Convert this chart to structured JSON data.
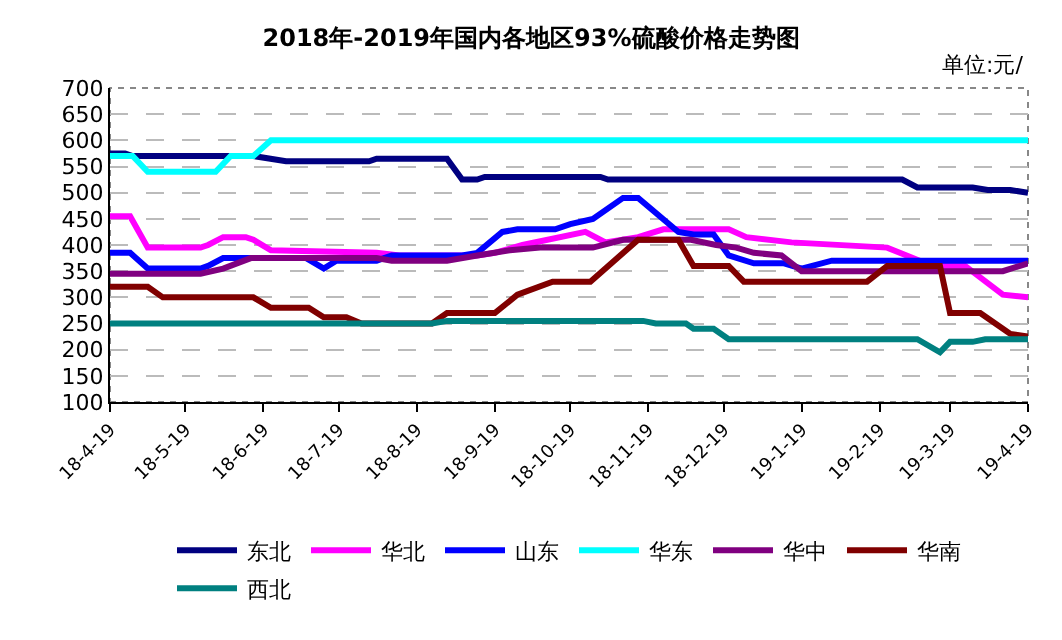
{
  "chart_data": {
    "type": "line",
    "title": "2018年-2019年国内各地区93%硫酸价格走势图",
    "annotations": [
      "单位:元/"
    ],
    "xlim": [
      "2018-04-19",
      "2019-04-19"
    ],
    "xticks": [
      {
        "value": "2018-04-19",
        "label": "18-4-19"
      },
      {
        "value": "2018-05-19",
        "label": "18-5-19"
      },
      {
        "value": "2018-06-19",
        "label": "18-6-19"
      },
      {
        "value": "2018-07-19",
        "label": "18-7-19"
      },
      {
        "value": "2018-08-19",
        "label": "18-8-19"
      },
      {
        "value": "2018-09-19",
        "label": "18-9-19"
      },
      {
        "value": "2018-10-19",
        "label": "18-10-19"
      },
      {
        "value": "2018-11-19",
        "label": "18-11-19"
      },
      {
        "value": "2018-12-19",
        "label": "18-12-19"
      },
      {
        "value": "2019-01-19",
        "label": "19-1-19"
      },
      {
        "value": "2019-02-19",
        "label": "19-2-19"
      },
      {
        "value": "2019-03-19",
        "label": "19-3-19"
      },
      {
        "value": "2019-04-19",
        "label": "19-4-19"
      }
    ],
    "ylim": [
      100,
      700
    ],
    "yticks": [
      100,
      150,
      200,
      250,
      300,
      350,
      400,
      450,
      500,
      550,
      600,
      650,
      700
    ],
    "grid": "y",
    "legend": "bottom",
    "marker": "none",
    "line_style": "solid",
    "series": [
      {
        "name": "东北",
        "color": "#000080",
        "x": [
          "2018-04-19",
          "2018-04-25",
          "2018-04-28",
          "2018-06-15",
          "2018-06-28",
          "2018-07-31",
          "2018-08-03",
          "2018-08-31",
          "2018-09-06",
          "2018-09-12",
          "2018-09-15",
          "2018-10-31",
          "2018-11-03",
          "2019-02-28",
          "2019-03-06",
          "2019-03-28",
          "2019-04-03",
          "2019-04-12",
          "2019-04-19"
        ],
        "values": [
          575,
          575,
          570,
          570,
          560,
          560,
          565,
          565,
          525,
          525,
          530,
          530,
          525,
          525,
          510,
          510,
          505,
          505,
          500
        ]
      },
      {
        "name": "华北",
        "color": "#ff00ff",
        "x": [
          "2018-04-19",
          "2018-04-27",
          "2018-05-04",
          "2018-05-25",
          "2018-05-28",
          "2018-06-03",
          "2018-06-12",
          "2018-06-15",
          "2018-06-22",
          "2018-08-03",
          "2018-08-12",
          "2018-09-12",
          "2018-09-19",
          "2018-09-30",
          "2018-10-25",
          "2018-11-02",
          "2018-11-15",
          "2018-11-25",
          "2018-12-21",
          "2018-12-28",
          "2019-01-15",
          "2019-02-22",
          "2019-03-12",
          "2019-03-25",
          "2019-04-09",
          "2019-04-19"
        ],
        "values": [
          455,
          455,
          395,
          395,
          400,
          415,
          415,
          410,
          390,
          385,
          380,
          380,
          385,
          400,
          425,
          405,
          415,
          430,
          430,
          415,
          405,
          395,
          360,
          360,
          305,
          300
        ]
      },
      {
        "name": "山东",
        "color": "#0000ff",
        "x": [
          "2018-04-19",
          "2018-04-27",
          "2018-05-04",
          "2018-05-25",
          "2018-05-28",
          "2018-06-03",
          "2018-07-06",
          "2018-07-13",
          "2018-07-18",
          "2018-08-03",
          "2018-08-09",
          "2018-09-06",
          "2018-09-12",
          "2018-09-22",
          "2018-09-28",
          "2018-10-13",
          "2018-10-19",
          "2018-10-28",
          "2018-11-09",
          "2018-11-15",
          "2018-12-01",
          "2018-12-07",
          "2018-12-15",
          "2018-12-21",
          "2018-12-31",
          "2019-01-12",
          "2019-01-19",
          "2019-01-31",
          "2019-04-19"
        ],
        "values": [
          385,
          385,
          355,
          355,
          360,
          375,
          375,
          355,
          370,
          370,
          380,
          380,
          385,
          425,
          430,
          430,
          440,
          450,
          490,
          490,
          425,
          420,
          420,
          380,
          365,
          365,
          355,
          370,
          370
        ]
      },
      {
        "name": "华东",
        "color": "#00ffff",
        "x": [
          "2018-04-19",
          "2018-04-28",
          "2018-05-04",
          "2018-05-31",
          "2018-06-06",
          "2018-06-15",
          "2018-06-22",
          "2019-04-19"
        ],
        "values": [
          570,
          570,
          540,
          540,
          570,
          570,
          600,
          600
        ]
      },
      {
        "name": "华中",
        "color": "#800080",
        "x": [
          "2018-04-19",
          "2018-05-25",
          "2018-06-03",
          "2018-06-14",
          "2018-08-03",
          "2018-08-09",
          "2018-08-31",
          "2018-09-12",
          "2018-09-25",
          "2018-10-07",
          "2018-10-28",
          "2018-11-09",
          "2018-12-06",
          "2018-12-16",
          "2018-12-24",
          "2018-12-31",
          "2019-01-11",
          "2019-01-19",
          "2019-04-09",
          "2019-04-19"
        ],
        "values": [
          345,
          345,
          355,
          375,
          375,
          370,
          370,
          380,
          390,
          395,
          395,
          410,
          410,
          400,
          395,
          385,
          380,
          350,
          350,
          365
        ]
      },
      {
        "name": "华南",
        "color": "#800000",
        "x": [
          "2018-04-19",
          "2018-05-04",
          "2018-05-10",
          "2018-06-15",
          "2018-06-22",
          "2018-07-07",
          "2018-07-13",
          "2018-07-22",
          "2018-07-28",
          "2018-08-25",
          "2018-08-31",
          "2018-09-19",
          "2018-09-28",
          "2018-10-12",
          "2018-10-27",
          "2018-11-15",
          "2018-12-01",
          "2018-12-07",
          "2018-12-21",
          "2018-12-27",
          "2019-02-14",
          "2019-02-22",
          "2019-03-15",
          "2019-03-19",
          "2019-03-31",
          "2019-04-12",
          "2019-04-19"
        ],
        "values": [
          320,
          320,
          300,
          300,
          280,
          280,
          262,
          262,
          250,
          250,
          270,
          270,
          305,
          330,
          330,
          410,
          410,
          360,
          360,
          330,
          330,
          360,
          360,
          270,
          270,
          230,
          225
        ]
      },
      {
        "name": "西北",
        "color": "#008080",
        "x": [
          "2018-04-19",
          "2018-08-25",
          "2018-08-31",
          "2018-11-17",
          "2018-11-22",
          "2018-12-04",
          "2018-12-07",
          "2018-12-15",
          "2018-12-21",
          "2019-03-06",
          "2019-03-15",
          "2019-03-19",
          "2019-03-28",
          "2019-04-02",
          "2019-04-19"
        ],
        "values": [
          250,
          250,
          255,
          255,
          250,
          250,
          240,
          240,
          220,
          220,
          195,
          215,
          215,
          220,
          220
        ]
      }
    ]
  }
}
